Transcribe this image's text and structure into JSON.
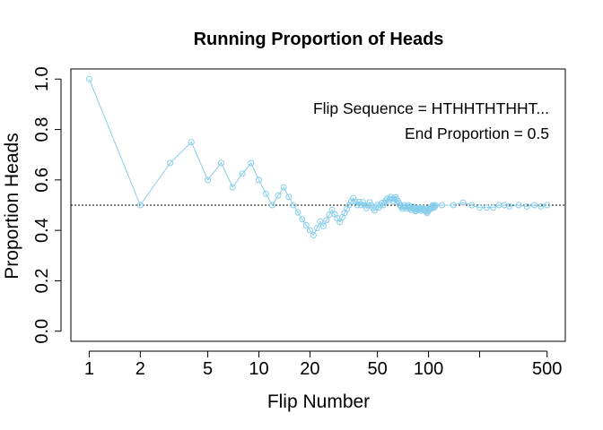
{
  "chart_data": {
    "type": "line",
    "title": "Running Proportion of Heads",
    "xlabel": "Flip Number",
    "ylabel": "Proportion Heads",
    "x_scale": "log",
    "xlim": [
      0.78,
      640
    ],
    "ylim": [
      -0.04,
      1.04
    ],
    "x_ticks": [
      1,
      2,
      5,
      10,
      20,
      50,
      100,
      200,
      500
    ],
    "x_tick_labels": [
      "1",
      "2",
      "5",
      "10",
      "20",
      "50",
      "100",
      "",
      "500"
    ],
    "y_ticks": [
      0.0,
      0.2,
      0.4,
      0.6,
      0.8,
      1.0
    ],
    "y_tick_labels": [
      "0.0",
      "0.2",
      "0.4",
      "0.6",
      "0.8",
      "1.0"
    ],
    "reference_line": 0.5,
    "grid": false,
    "series_color": "#87CEEB",
    "marker": "open-circle",
    "annotations": [
      "Flip Sequence = HTHHTHTHHT...",
      "End Proportion = 0.5"
    ],
    "series": [
      {
        "values_by_flip": [
          1.0,
          0.5,
          0.667,
          0.75,
          0.6,
          0.667,
          0.571,
          0.625,
          0.667,
          0.6,
          0.545,
          0.5,
          0.538,
          0.571,
          0.533,
          0.5,
          0.471,
          0.444,
          0.421,
          0.4,
          0.381,
          0.409,
          0.435,
          0.417,
          0.44,
          0.462,
          0.481,
          0.464,
          0.448,
          0.433,
          0.452,
          0.469,
          0.485,
          0.5,
          0.514,
          0.528,
          0.514,
          0.5,
          0.513,
          0.5,
          0.512,
          0.5,
          0.488,
          0.5,
          0.511,
          0.5,
          0.489,
          0.479,
          0.49,
          0.5,
          0.49,
          0.5,
          0.509,
          0.5,
          0.509,
          0.518,
          0.526,
          0.517,
          0.525,
          0.533,
          0.525,
          0.516,
          0.524,
          0.531,
          0.523,
          0.515,
          0.507,
          0.5,
          0.493,
          0.486,
          0.493,
          0.5,
          0.493,
          0.486,
          0.493,
          0.5,
          0.494,
          0.487,
          0.481,
          0.488,
          0.494,
          0.488,
          0.482,
          0.476,
          0.482,
          0.488,
          0.483,
          0.489,
          0.483,
          0.478,
          0.484,
          0.489,
          0.484,
          0.479,
          0.484,
          0.479,
          0.474,
          0.469,
          0.475,
          0.48,
          0.485,
          0.49,
          0.485,
          0.49,
          0.495,
          0.5,
          0.495,
          0.491,
          0.495,
          0.5
        ],
        "tail_values": [
          [
            120,
            0.5
          ],
          [
            140,
            0.5
          ],
          [
            160,
            0.51
          ],
          [
            180,
            0.5
          ],
          [
            200,
            0.49
          ],
          [
            220,
            0.49
          ],
          [
            240,
            0.49
          ],
          [
            260,
            0.5
          ],
          [
            280,
            0.5
          ],
          [
            300,
            0.495
          ],
          [
            340,
            0.5
          ],
          [
            380,
            0.495
          ],
          [
            420,
            0.5
          ],
          [
            460,
            0.495
          ],
          [
            500,
            0.5
          ]
        ]
      }
    ]
  }
}
